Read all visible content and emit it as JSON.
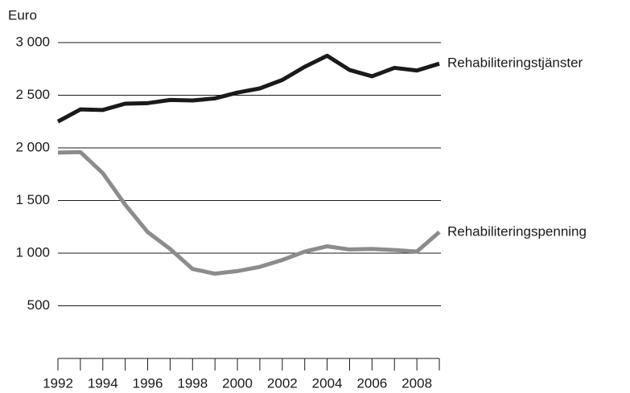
{
  "chart_data": {
    "type": "line",
    "y_label": "Euro",
    "x": [
      1992,
      1993,
      1994,
      1995,
      1996,
      1997,
      1998,
      1999,
      2000,
      2001,
      2002,
      2003,
      2004,
      2005,
      2006,
      2007,
      2008,
      2009
    ],
    "series": [
      {
        "name": "Rehabiliteringstjänster",
        "color": "#1a1a1a",
        "values": [
          2250,
          2365,
          2360,
          2420,
          2425,
          2455,
          2450,
          2470,
          2525,
          2565,
          2645,
          2770,
          2875,
          2740,
          2680,
          2760,
          2735,
          2800
        ]
      },
      {
        "name": "Rehabiliteringspenning",
        "color": "#8c8c8c",
        "values": [
          1955,
          1960,
          1760,
          1460,
          1200,
          1040,
          850,
          805,
          830,
          870,
          935,
          1015,
          1065,
          1035,
          1040,
          1030,
          1015,
          1200
        ]
      }
    ],
    "xlim": [
      1992,
      2009
    ],
    "xticks": [
      1992,
      1994,
      1996,
      1998,
      2000,
      2002,
      2004,
      2006,
      2008
    ],
    "ylim": [
      0,
      3000
    ],
    "yticks": [
      500,
      {
        "value": 1000,
        "label": "1 000"
      },
      {
        "value": 1500,
        "label": "1 500"
      },
      {
        "value": 2000,
        "label": "2 000"
      },
      {
        "value": 2500,
        "label": "2 500"
      },
      {
        "value": 3000,
        "label": "3 000"
      }
    ],
    "grid": true
  }
}
